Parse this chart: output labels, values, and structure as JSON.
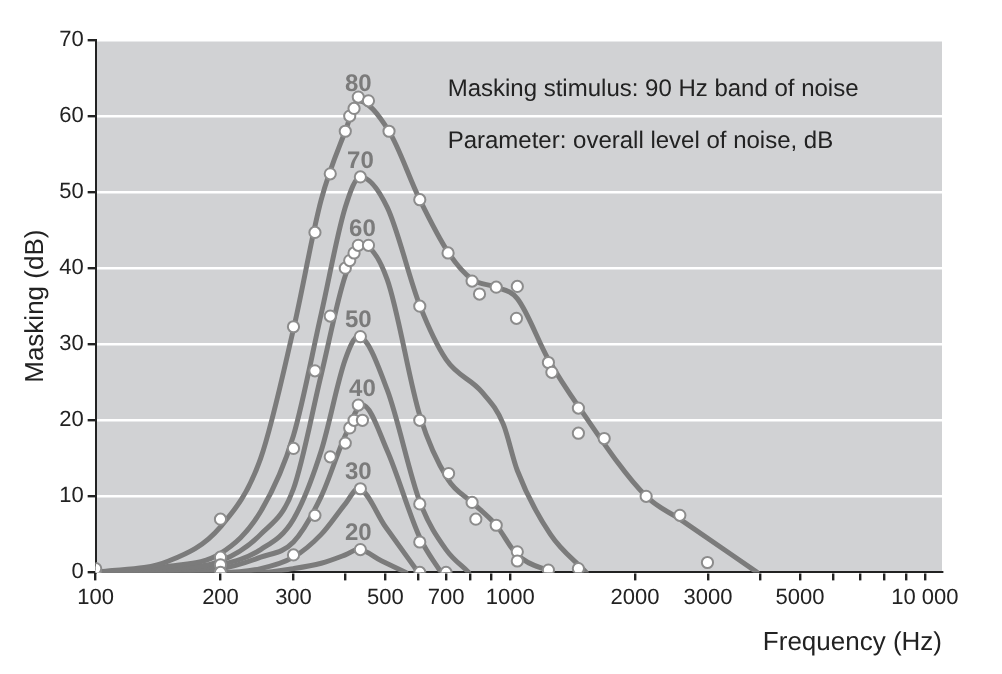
{
  "chart_data": {
    "type": "line",
    "xlabel": "Frequency (Hz)",
    "ylabel": "Masking (dB)",
    "annotations": [
      "Masking stimulus: 90 Hz band of noise",
      "Parameter: overall level of noise, dB"
    ],
    "log": "x",
    "grid": "y",
    "line_style": "solid",
    "xlim": [
      100,
      11000
    ],
    "ylim": [
      0,
      70
    ],
    "xticks": [
      100,
      200,
      300,
      {
        "value": 400,
        "label": null
      },
      500,
      {
        "value": 600,
        "label": null
      },
      700,
      {
        "value": 800,
        "label": null
      },
      {
        "value": 900,
        "label": null
      },
      1000,
      2000,
      3000,
      {
        "value": 4000,
        "label": null
      },
      5000,
      {
        "value": 6000,
        "label": null
      },
      {
        "value": 7000,
        "label": null
      },
      {
        "value": 8000,
        "label": null
      },
      {
        "value": 9000,
        "label": null
      },
      {
        "value": 10000,
        "label": "10 000"
      }
    ],
    "yticks": [
      0,
      10,
      20,
      30,
      40,
      50,
      60,
      70
    ],
    "series": [
      {
        "name": "80",
        "color": "#7b7b7b",
        "marker": "none",
        "x": [
          100,
          150,
          200,
          250,
          300,
          350,
          400,
          430,
          510,
          605,
          710,
          810,
          925,
          1040,
          1236,
          1470,
          2127,
          2565,
          3940
        ],
        "values": [
          0,
          1.5,
          6,
          15,
          32,
          49,
          58,
          62,
          58,
          49,
          42,
          38.5,
          37.5,
          36,
          28,
          21.6,
          10,
          7,
          0
        ]
      },
      {
        "name": "70",
        "color": "#7b7b7b",
        "marker": "none",
        "x": [
          100,
          150,
          200,
          250,
          300,
          350,
          400,
          435,
          505,
          606,
          700,
          855,
          962,
          1040,
          1250,
          1525
        ],
        "values": [
          0,
          0.8,
          2.5,
          8,
          18,
          34,
          48,
          52,
          48,
          35,
          28,
          23.7,
          19.5,
          13.4,
          5,
          0
        ]
      },
      {
        "name": "60",
        "color": "#7b7b7b",
        "marker": "none",
        "x": [
          100,
          150,
          200,
          250,
          300,
          350,
          400,
          440,
          505,
          606,
          708,
          809,
          925,
          1040,
          1260
        ],
        "values": [
          0,
          0.5,
          1.5,
          5,
          11,
          26,
          39,
          43,
          38.5,
          20.5,
          12.2,
          9.2,
          6.2,
          2.3,
          0
        ]
      },
      {
        "name": "50",
        "color": "#7b7b7b",
        "marker": "none",
        "x": [
          100,
          150,
          200,
          250,
          300,
          350,
          400,
          430,
          505,
          606,
          700,
          794
        ],
        "values": [
          0,
          0.3,
          1,
          3,
          7,
          16,
          28,
          31,
          24,
          9.2,
          3,
          0
        ]
      },
      {
        "name": "40",
        "color": "#7b7b7b",
        "marker": "none",
        "x": [
          100,
          150,
          200,
          250,
          300,
          350,
          400,
          440,
          505,
          606,
          681
        ],
        "values": [
          0,
          0.2,
          0.5,
          2,
          4,
          10,
          18,
          22,
          16,
          4.5,
          0
        ]
      },
      {
        "name": "30",
        "color": "#7b7b7b",
        "marker": "none",
        "x": [
          100,
          200,
          250,
          300,
          350,
          400,
          430,
          500,
          600
        ],
        "values": [
          0,
          0,
          0.5,
          2,
          5,
          9,
          11,
          6,
          0
        ]
      },
      {
        "name": "20",
        "color": "#7b7b7b",
        "marker": "none",
        "x": [
          100,
          250,
          300,
          350,
          400,
          430,
          490,
          560
        ],
        "values": [
          0,
          0,
          0.5,
          1.2,
          2.3,
          3,
          1.5,
          0
        ]
      },
      {
        "type": "scatter",
        "color": "#ffffff",
        "marker": "circle",
        "x": [
          100,
          100,
          200,
          200,
          200,
          200,
          300,
          300,
          300,
          338,
          338,
          338,
          368,
          368,
          368,
          400,
          410,
          420,
          430,
          455,
          435,
          400,
          410,
          420,
          430,
          455,
          435,
          400,
          410,
          420,
          430,
          440,
          435,
          435,
          510,
          605,
          605,
          605,
          605,
          605,
          605,
          708,
          710,
          700,
          809,
          843,
          925,
          1040,
          1035,
          809,
          826,
          925,
          1040,
          1040,
          1236,
          1260,
          1236,
          1460,
          1460,
          1685,
          1460,
          2127,
          2565,
          2990
        ],
        "values": [
          0,
          0.5,
          7,
          2,
          1,
          0,
          32.3,
          16.3,
          2.3,
          44.7,
          26.5,
          7.5,
          52.4,
          33.7,
          15.2,
          58,
          60,
          61,
          62.5,
          62,
          52,
          40,
          41,
          42,
          43,
          43,
          31,
          17,
          19,
          20,
          22,
          20,
          11,
          3,
          58,
          49,
          35,
          20,
          9,
          4,
          0,
          42,
          13,
          0,
          38.3,
          36.6,
          37.5,
          37.6,
          33.4,
          9.2,
          7,
          6.2,
          2.7,
          1.5,
          27.6,
          26.3,
          0.3,
          21.6,
          18.3,
          17.6,
          0.5,
          10,
          7.5,
          1.3
        ]
      }
    ]
  }
}
